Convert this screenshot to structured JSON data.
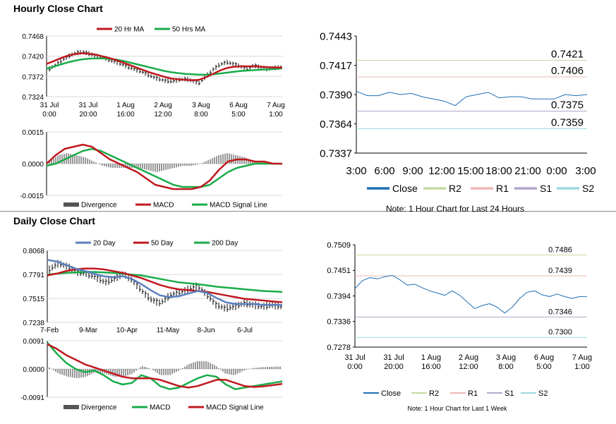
{
  "sections": {
    "hourly_title": "Hourly Close Chart",
    "daily_title": "Daily Close Chart"
  },
  "colors": {
    "ma_short": "#c0191f",
    "ma_long": "#1aab49",
    "ma_200": "#1aab49",
    "ma_20day": "#5b7fbf",
    "close_line": "#1e6fb5",
    "r2": "#c4dba0",
    "r1": "#eeb8b3",
    "s1": "#b4a6cc",
    "s2": "#9fd8de",
    "divergence": "#555555",
    "macd_red": "#c0191f",
    "macd_green": "#1aab49"
  },
  "chart_data": [
    {
      "id": "hourly_price",
      "type": "line",
      "title": "",
      "legend": [
        "20 Hr MA",
        "50 Hrs MA"
      ],
      "y_ticks": [
        "0.7468",
        "0.7420",
        "0.7372",
        "0.7324"
      ],
      "ylim": [
        0.7324,
        0.7468
      ],
      "x_ticks": [
        [
          "31 Jul",
          "0:00"
        ],
        [
          "31 Jul",
          "20:00"
        ],
        [
          "1 Aug",
          "16:00"
        ],
        [
          "2 Aug",
          "12:00"
        ],
        [
          "3 Aug",
          "8:00"
        ],
        [
          "6 Aug",
          "5:00"
        ],
        [
          "7 Aug",
          "1:00"
        ]
      ],
      "series": [
        {
          "name": "Price",
          "values": [
            0.739,
            0.74,
            0.7412,
            0.7422,
            0.7428,
            0.743,
            0.7425,
            0.742,
            0.7416,
            0.741,
            0.7405,
            0.7398,
            0.7392,
            0.7386,
            0.738,
            0.7372,
            0.7366,
            0.7362,
            0.736,
            0.7364,
            0.7366,
            0.7362,
            0.7356,
            0.7372,
            0.7388,
            0.74,
            0.7406,
            0.7402,
            0.7396,
            0.739,
            0.7398,
            0.7394,
            0.739,
            0.7392,
            0.7394
          ]
        },
        {
          "name": "20 Hr MA",
          "values": [
            0.7402,
            0.7408,
            0.7415,
            0.7421,
            0.7425,
            0.7427,
            0.7426,
            0.7424,
            0.742,
            0.7416,
            0.7411,
            0.7405,
            0.7399,
            0.7393,
            0.7387,
            0.7381,
            0.7376,
            0.7371,
            0.7367,
            0.7365,
            0.7364,
            0.7363,
            0.7364,
            0.737,
            0.7378,
            0.7386,
            0.7392,
            0.7395,
            0.7396,
            0.7396,
            0.7396,
            0.7395,
            0.7394,
            0.7393,
            0.7393
          ]
        },
        {
          "name": "50 Hrs MA",
          "values": [
            0.739,
            0.7395,
            0.74,
            0.7405,
            0.7409,
            0.7412,
            0.7414,
            0.7415,
            0.7415,
            0.7414,
            0.7412,
            0.7409,
            0.7405,
            0.7401,
            0.7397,
            0.7393,
            0.7389,
            0.7385,
            0.7382,
            0.738,
            0.7378,
            0.7377,
            0.7376,
            0.7376,
            0.7377,
            0.7379,
            0.7381,
            0.7383,
            0.7385,
            0.7386,
            0.7387,
            0.7388,
            0.7389,
            0.739,
            0.7391
          ]
        }
      ]
    },
    {
      "id": "hourly_macd",
      "type": "line",
      "legend": [
        "Divergence",
        "MACD",
        "MACD Signal Line"
      ],
      "y_ticks": [
        "0.0015",
        "0.0000",
        "-0.0015"
      ],
      "ylim": [
        -0.0015,
        0.0015
      ],
      "series": [
        {
          "name": "MACD",
          "values": [
            0.0,
            0.0004,
            0.0007,
            0.0008,
            0.0009,
            0.0008,
            0.0005,
            0.0002,
            0.0,
            -0.0002,
            -0.0004,
            -0.0007,
            -0.001,
            -0.0011,
            -0.0012,
            -0.0012,
            -0.0012,
            -0.0011,
            -0.0008,
            -0.0003,
            0.0001,
            0.0002,
            0.0002,
            0.0001,
            0.0001,
            0.0,
            0.0
          ]
        },
        {
          "name": "MACD Signal Line",
          "values": [
            -0.0001,
            0.0,
            0.0002,
            0.0004,
            0.0006,
            0.0007,
            0.0006,
            0.0004,
            0.0002,
            0.0,
            -0.0002,
            -0.0004,
            -0.0006,
            -0.0008,
            -0.001,
            -0.0011,
            -0.0011,
            -0.0011,
            -0.001,
            -0.0007,
            -0.0004,
            -0.0002,
            -0.0001,
            0.0,
            0.0,
            0.0,
            0.0
          ]
        },
        {
          "name": "Divergence",
          "values": [
            0.0001,
            0.0004,
            0.0005,
            0.0004,
            0.0003,
            0.0001,
            -0.0001,
            -0.0002,
            -0.0002,
            -0.0002,
            -0.0002,
            -0.0003,
            -0.0004,
            -0.0003,
            -0.0002,
            -0.0001,
            -0.0001,
            0.0,
            0.0002,
            0.0004,
            0.0005,
            0.0004,
            0.0003,
            0.0001,
            0.0001,
            0.0,
            0.0
          ]
        }
      ]
    },
    {
      "id": "hourly_close_24h",
      "type": "line",
      "y_ticks": [
        "0.7443",
        "0.7417",
        "0.7390",
        "0.7364",
        "0.7337"
      ],
      "ylim": [
        0.7337,
        0.7443
      ],
      "x_ticks": [
        "3:00",
        "6:00",
        "9:00",
        "12:00",
        "15:00",
        "18:00",
        "21:00",
        "0:00",
        "3:00"
      ],
      "levels": [
        {
          "name": "R2",
          "value": 0.7421,
          "label": "0.7421"
        },
        {
          "name": "R1",
          "value": 0.7406,
          "label": "0.7406"
        },
        {
          "name": "S1",
          "value": 0.7375,
          "label": "0.7375"
        },
        {
          "name": "S2",
          "value": 0.7359,
          "label": "0.7359"
        }
      ],
      "series": [
        {
          "name": "Close",
          "values": [
            0.7393,
            0.7389,
            0.7389,
            0.7392,
            0.739,
            0.7391,
            0.7388,
            0.7386,
            0.7384,
            0.738,
            0.7388,
            0.739,
            0.7392,
            0.7387,
            0.7388,
            0.7388,
            0.7386,
            0.7386,
            0.7386,
            0.739,
            0.7389,
            0.739
          ]
        }
      ],
      "legend": [
        "Close",
        "R2",
        "R1",
        "S1",
        "S2"
      ],
      "note": "Note: 1 Hour Chart for Last 24 Hours"
    },
    {
      "id": "daily_price",
      "type": "line",
      "legend": [
        "20 Day",
        "50 Day",
        "200 Day"
      ],
      "y_ticks": [
        "0.8068",
        "0.7791",
        "0.7515",
        "0.7238"
      ],
      "ylim": [
        0.7238,
        0.8068
      ],
      "x_ticks": [
        "7-Feb",
        "9-Mar",
        "10-Apr",
        "11-May",
        "8-Jun",
        "6-Jul"
      ],
      "series": [
        {
          "name": "Price",
          "values": [
            0.785,
            0.792,
            0.788,
            0.782,
            0.78,
            0.776,
            0.77,
            0.774,
            0.78,
            0.772,
            0.76,
            0.75,
            0.746,
            0.755,
            0.758,
            0.762,
            0.766,
            0.756,
            0.744,
            0.74,
            0.742,
            0.746,
            0.744,
            0.742,
            0.744,
            0.742
          ]
        },
        {
          "name": "20 Day",
          "values": [
            0.796,
            0.794,
            0.79,
            0.786,
            0.783,
            0.78,
            0.777,
            0.776,
            0.777,
            0.774,
            0.768,
            0.761,
            0.755,
            0.753,
            0.754,
            0.757,
            0.76,
            0.758,
            0.752,
            0.747,
            0.745,
            0.745,
            0.745,
            0.744,
            0.744,
            0.744
          ]
        },
        {
          "name": "50 Day",
          "values": [
            0.778,
            0.78,
            0.783,
            0.785,
            0.786,
            0.786,
            0.785,
            0.783,
            0.781,
            0.778,
            0.775,
            0.771,
            0.767,
            0.764,
            0.762,
            0.761,
            0.76,
            0.759,
            0.757,
            0.755,
            0.753,
            0.751,
            0.75,
            0.749,
            0.748,
            0.747
          ]
        },
        {
          "name": "200 Day",
          "values": [
            0.779,
            0.78,
            0.781,
            0.7815,
            0.782,
            0.782,
            0.7815,
            0.781,
            0.78,
            0.779,
            0.778,
            0.776,
            0.774,
            0.772,
            0.77,
            0.769,
            0.768,
            0.7665,
            0.765,
            0.764,
            0.763,
            0.762,
            0.761,
            0.76,
            0.7595,
            0.759
          ]
        }
      ]
    },
    {
      "id": "daily_macd",
      "type": "line",
      "legend": [
        "Divergence",
        "MACD",
        "MACD Signal Line"
      ],
      "y_ticks": [
        "0.0091",
        "0.0000",
        "-0.0091"
      ],
      "ylim": [
        -0.0091,
        0.0091
      ],
      "series": [
        {
          "name": "MACD",
          "values": [
            0.0085,
            0.005,
            0.002,
            0.0,
            -0.001,
            -0.0005,
            -0.002,
            -0.004,
            -0.005,
            -0.0045,
            -0.002,
            -0.003,
            -0.0055,
            -0.0065,
            -0.006,
            -0.0045,
            -0.003,
            -0.002,
            -0.0025,
            -0.005,
            -0.0065,
            -0.006,
            -0.0055,
            -0.005,
            -0.0045,
            -0.004
          ]
        },
        {
          "name": "MACD Signal Line",
          "values": [
            0.008,
            0.0065,
            0.0045,
            0.003,
            0.0015,
            0.0005,
            -0.0005,
            -0.0015,
            -0.0025,
            -0.003,
            -0.003,
            -0.003,
            -0.0035,
            -0.0045,
            -0.0055,
            -0.006,
            -0.0055,
            -0.0045,
            -0.0035,
            -0.0035,
            -0.0045,
            -0.0055,
            -0.0058,
            -0.0056,
            -0.0052,
            -0.0048
          ]
        },
        {
          "name": "Divergence",
          "values": [
            0.0005,
            -0.0015,
            -0.0025,
            -0.003,
            -0.0025,
            -0.001,
            -0.0015,
            -0.0025,
            -0.0025,
            -0.0015,
            0.001,
            0.0,
            -0.002,
            -0.002,
            -0.0005,
            0.0015,
            0.0025,
            0.0025,
            0.001,
            -0.0015,
            -0.002,
            -0.0005,
            0.0003,
            0.0006,
            0.0007,
            0.0008
          ]
        }
      ]
    },
    {
      "id": "daily_close_1w",
      "type": "line",
      "y_ticks": [
        "0.7509",
        "0.7451",
        "0.7394",
        "0.7336",
        "0.7278"
      ],
      "ylim": [
        0.7278,
        0.7509
      ],
      "x_ticks": [
        [
          "31 Jul",
          "0:00"
        ],
        [
          "31 Jul",
          "20:00"
        ],
        [
          "1 Aug",
          "16:00"
        ],
        [
          "2 Aug",
          "12:00"
        ],
        [
          "3 Aug",
          "8:00"
        ],
        [
          "6 Aug",
          "5:00"
        ],
        [
          "7 Aug",
          "1:00"
        ]
      ],
      "levels": [
        {
          "name": "R2",
          "value": 0.7486,
          "label": "0.7486"
        },
        {
          "name": "R1",
          "value": 0.7439,
          "label": "0.7439"
        },
        {
          "name": "S1",
          "value": 0.7346,
          "label": "0.7346"
        },
        {
          "name": "S2",
          "value": 0.73,
          "label": "0.7300"
        }
      ],
      "series": [
        {
          "name": "Close",
          "values": [
            0.741,
            0.7428,
            0.7435,
            0.7432,
            0.7437,
            0.744,
            0.743,
            0.7418,
            0.742,
            0.7412,
            0.7405,
            0.74,
            0.7395,
            0.7405,
            0.7395,
            0.738,
            0.7365,
            0.7372,
            0.7376,
            0.7368,
            0.7355,
            0.7368,
            0.7388,
            0.7402,
            0.7405,
            0.7396,
            0.7392,
            0.7398,
            0.7392,
            0.7388,
            0.7392,
            0.7392
          ]
        }
      ],
      "legend": [
        "Close",
        "R2",
        "R1",
        "S1",
        "S2"
      ],
      "note": "Note: 1 Hour Chart for Last 1 Week"
    }
  ]
}
